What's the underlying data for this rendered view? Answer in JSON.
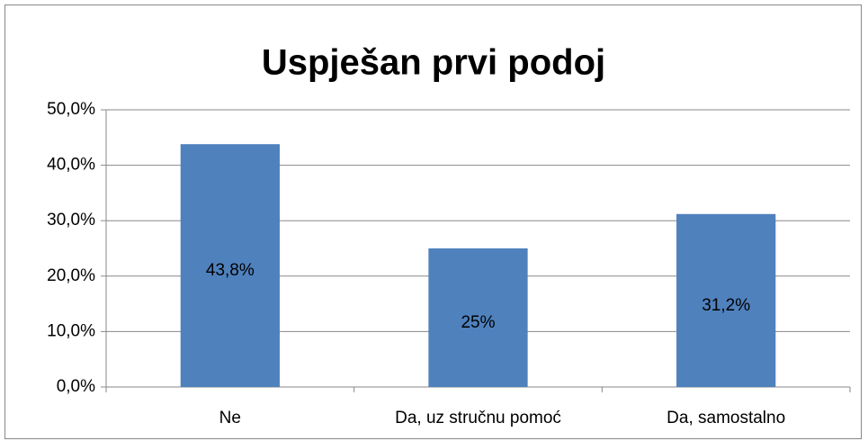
{
  "chart_data": {
    "type": "bar",
    "title": "Uspješan prvi podoj",
    "categories": [
      "Ne",
      "Da, uz stručnu pomoć",
      "Da, samostalno"
    ],
    "values": [
      43.8,
      25,
      31.2
    ],
    "value_labels": [
      "43,8%",
      "25%",
      "31,2%"
    ],
    "color": "#4f81bd",
    "ylim": [
      0,
      50
    ],
    "yticks": [
      {
        "value": 0,
        "label": "0,0%"
      },
      {
        "value": 10,
        "label": "10,0%"
      },
      {
        "value": 20,
        "label": "20,0%"
      },
      {
        "value": 30,
        "label": "30,0%"
      },
      {
        "value": 40,
        "label": "40,0%"
      },
      {
        "value": 50,
        "label": "50,0%"
      }
    ],
    "grid": true
  }
}
